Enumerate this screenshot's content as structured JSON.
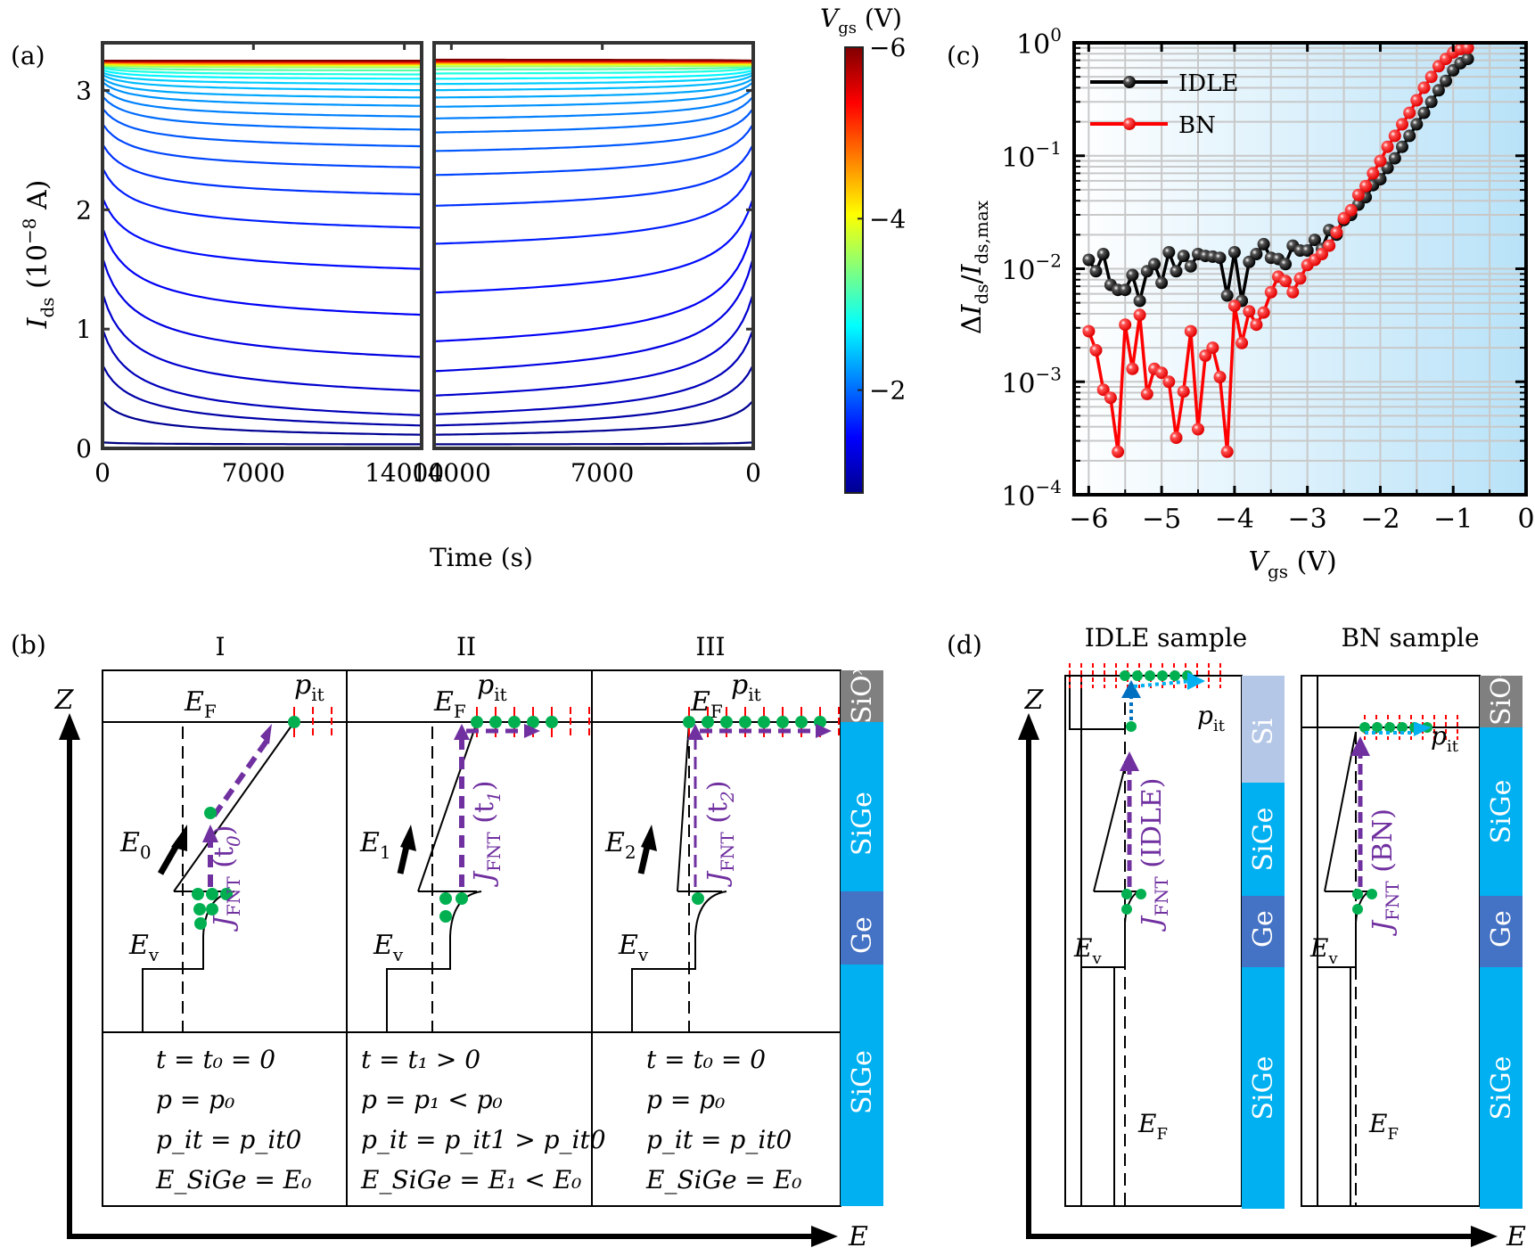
{
  "figure": {
    "panel_labels": {
      "a": "(a)",
      "b": "(b)",
      "c": "(c)",
      "d": "(d)"
    }
  },
  "chart_data": [
    {
      "id": "a",
      "type": "line",
      "title": "",
      "xlabel": "Time (s)",
      "ylabel": "I_ds (10^-8 A)",
      "ylabel_parts": {
        "var": "I",
        "sub": "ds",
        "unit_pre": " (10",
        "exp": "−8",
        "unit_post": " A)"
      },
      "ylim": [
        0,
        3.4
      ],
      "yticks": [
        0,
        1,
        2,
        3
      ],
      "ytick_labels": [
        "0",
        "1",
        "2",
        "3"
      ],
      "subplots": [
        {
          "name": "stress",
          "xlim": [
            0,
            14800
          ],
          "xticks": [
            0,
            7000,
            14000
          ],
          "xtick_labels": [
            "0",
            "7000",
            "14000"
          ],
          "direction": "forward"
        },
        {
          "name": "recovery",
          "xlim": [
            14800,
            0
          ],
          "xticks": [
            14000,
            7000,
            0
          ],
          "xtick_labels": [
            "14000",
            "7000",
            "0"
          ],
          "direction": "reversed"
        }
      ],
      "colorbar": {
        "label_var": "V",
        "label_sub": "gs",
        "label_unit": " (V)",
        "range": [
          -6,
          -0.8
        ],
        "ticks": [
          -6,
          -4,
          -2
        ],
        "tick_labels": [
          "−6",
          "−4",
          "−2"
        ],
        "colormap": "jet"
      },
      "series_description": "Family of Ids–time curves, one per Vgs from −0.8 V (blue, bottom) to −6 V (red, top ~3.25)",
      "curves": [
        {
          "vgs": -0.8,
          "start": 0.05,
          "end_stress": 0.03,
          "end_recovery": 0.03
        },
        {
          "vgs": -0.9,
          "start": 0.4,
          "end_stress": 0.04,
          "end_recovery": 0.04
        },
        {
          "vgs": -1.0,
          "start": 0.7,
          "end_stress": 0.06,
          "end_recovery": 0.06
        },
        {
          "vgs": -1.1,
          "start": 1.0,
          "end_stress": 0.09,
          "end_recovery": 0.1
        },
        {
          "vgs": -1.2,
          "start": 1.3,
          "end_stress": 0.27,
          "end_recovery": 0.22
        },
        {
          "vgs": -1.3,
          "start": 1.6,
          "end_stress": 0.55,
          "end_recovery": 0.4
        },
        {
          "vgs": -1.4,
          "start": 1.85,
          "end_stress": 0.93,
          "end_recovery": 0.65
        },
        {
          "vgs": -1.5,
          "start": 2.1,
          "end_stress": 1.35,
          "end_recovery": 1.1
        },
        {
          "vgs": -1.6,
          "start": 2.35,
          "end_stress": 1.72,
          "end_recovery": 1.55
        },
        {
          "vgs": -1.7,
          "start": 2.55,
          "end_stress": 2.02,
          "end_recovery": 1.9
        },
        {
          "vgs": -1.8,
          "start": 2.72,
          "end_stress": 2.26,
          "end_recovery": 2.18
        },
        {
          "vgs": -1.9,
          "start": 2.85,
          "end_stress": 2.45,
          "end_recovery": 2.4
        },
        {
          "vgs": -2.0,
          "start": 2.95,
          "end_stress": 2.6,
          "end_recovery": 2.57
        },
        {
          "vgs": -2.1,
          "start": 3.02,
          "end_stress": 2.72,
          "end_recovery": 2.7
        },
        {
          "vgs": -2.2,
          "start": 3.07,
          "end_stress": 2.82,
          "end_recovery": 2.81
        },
        {
          "vgs": -2.3,
          "start": 3.1,
          "end_stress": 2.9,
          "end_recovery": 2.9
        },
        {
          "vgs": -2.4,
          "start": 3.13,
          "end_stress": 2.97,
          "end_recovery": 2.97
        },
        {
          "vgs": -2.5,
          "start": 3.15,
          "end_stress": 3.03,
          "end_recovery": 3.03
        },
        {
          "vgs": -2.7,
          "start": 3.17,
          "end_stress": 3.08,
          "end_recovery": 3.08
        },
        {
          "vgs": -2.9,
          "start": 3.19,
          "end_stress": 3.12,
          "end_recovery": 3.13
        },
        {
          "vgs": -3.2,
          "start": 3.2,
          "end_stress": 3.16,
          "end_recovery": 3.17
        },
        {
          "vgs": -3.6,
          "start": 3.21,
          "end_stress": 3.19,
          "end_recovery": 3.2
        },
        {
          "vgs": -4.0,
          "start": 3.22,
          "end_stress": 3.21,
          "end_recovery": 3.22
        },
        {
          "vgs": -4.5,
          "start": 3.23,
          "end_stress": 3.22,
          "end_recovery": 3.23
        },
        {
          "vgs": -5.0,
          "start": 3.24,
          "end_stress": 3.23,
          "end_recovery": 3.24
        },
        {
          "vgs": -5.5,
          "start": 3.245,
          "end_stress": 3.24,
          "end_recovery": 3.245
        },
        {
          "vgs": -6.0,
          "start": 3.25,
          "end_stress": 3.25,
          "end_recovery": 3.26
        }
      ]
    },
    {
      "id": "c",
      "type": "line",
      "scale_y": "log",
      "xlabel_var": "V",
      "xlabel_sub": "gs",
      "xlabel_unit": " (V)",
      "ylabel": "ΔI_ds/I_ds,max",
      "xlim": [
        -6.2,
        0
      ],
      "ylim": [
        0.0001,
        1
      ],
      "xticks": [
        -6,
        -5,
        -4,
        -3,
        -2,
        -1,
        0
      ],
      "xtick_labels": [
        "−6",
        "−5",
        "−4",
        "−3",
        "−2",
        "−1",
        "0"
      ],
      "yticks": [
        0.0001,
        0.001,
        0.01,
        0.1,
        1
      ],
      "ytick_labels": [
        {
          "base": "10",
          "exp": "−4"
        },
        {
          "base": "10",
          "exp": "−3"
        },
        {
          "base": "10",
          "exp": "−2"
        },
        {
          "base": "10",
          "exp": "−1"
        },
        {
          "base": "10",
          "exp": "0"
        }
      ],
      "grid": true,
      "background": "gradient white→light blue left-to-right",
      "legend": {
        "position": "top-left",
        "entries": [
          "IDLE",
          "BN"
        ]
      },
      "series": [
        {
          "name": "IDLE",
          "color": "#000000",
          "x": [
            -6.0,
            -5.9,
            -5.8,
            -5.7,
            -5.6,
            -5.5,
            -5.4,
            -5.3,
            -5.2,
            -5.1,
            -5.0,
            -4.9,
            -4.8,
            -4.7,
            -4.6,
            -4.5,
            -4.4,
            -4.3,
            -4.2,
            -4.1,
            -4.0,
            -3.9,
            -3.8,
            -3.7,
            -3.6,
            -3.5,
            -3.4,
            -3.3,
            -3.2,
            -3.1,
            -3.0,
            -2.9,
            -2.8,
            -2.7,
            -2.6,
            -2.5,
            -2.4,
            -2.3,
            -2.2,
            -2.1,
            -2.0,
            -1.9,
            -1.8,
            -1.7,
            -1.6,
            -1.5,
            -1.4,
            -1.3,
            -1.2,
            -1.1,
            -1.0,
            -0.9,
            -0.8
          ],
          "values": [
            0.012,
            0.0095,
            0.0135,
            0.0072,
            0.0065,
            0.0065,
            0.0088,
            0.0052,
            0.0095,
            0.011,
            0.0075,
            0.014,
            0.0095,
            0.013,
            0.0105,
            0.0135,
            0.013,
            0.0128,
            0.0125,
            0.0058,
            0.014,
            0.0052,
            0.0115,
            0.0135,
            0.0165,
            0.0125,
            0.0122,
            0.011,
            0.016,
            0.0145,
            0.0145,
            0.018,
            0.015,
            0.022,
            0.02,
            0.027,
            0.03,
            0.037,
            0.043,
            0.055,
            0.062,
            0.078,
            0.095,
            0.12,
            0.15,
            0.19,
            0.24,
            0.3,
            0.38,
            0.46,
            0.57,
            0.66,
            0.72
          ]
        },
        {
          "name": "BN",
          "color": "#ff0000",
          "x": [
            -6.0,
            -5.9,
            -5.8,
            -5.7,
            -5.6,
            -5.5,
            -5.4,
            -5.3,
            -5.2,
            -5.1,
            -5.0,
            -4.9,
            -4.8,
            -4.7,
            -4.6,
            -4.5,
            -4.4,
            -4.3,
            -4.2,
            -4.1,
            -4.0,
            -3.9,
            -3.8,
            -3.7,
            -3.6,
            -3.5,
            -3.4,
            -3.3,
            -3.2,
            -3.1,
            -3.0,
            -2.9,
            -2.8,
            -2.7,
            -2.6,
            -2.5,
            -2.4,
            -2.3,
            -2.2,
            -2.1,
            -2.0,
            -1.9,
            -1.8,
            -1.7,
            -1.6,
            -1.5,
            -1.4,
            -1.3,
            -1.2,
            -1.1,
            -1.0,
            -0.9,
            -0.8
          ],
          "values": [
            0.0028,
            0.0019,
            0.00085,
            0.00072,
            0.00024,
            0.0032,
            0.0013,
            0.0039,
            0.00078,
            0.0013,
            0.0012,
            0.001,
            0.00032,
            0.00082,
            0.0028,
            0.00038,
            0.0017,
            0.002,
            0.0011,
            0.00024,
            0.0047,
            0.0022,
            0.0042,
            0.0032,
            0.0041,
            0.0062,
            0.0085,
            0.0078,
            0.0062,
            0.0082,
            0.0108,
            0.012,
            0.0135,
            0.016,
            0.021,
            0.028,
            0.033,
            0.045,
            0.054,
            0.07,
            0.09,
            0.12,
            0.15,
            0.19,
            0.24,
            0.31,
            0.4,
            0.5,
            0.62,
            0.72,
            0.82,
            0.88,
            0.9
          ]
        }
      ]
    }
  ],
  "panel_b": {
    "columns": [
      "I",
      "II",
      "III"
    ],
    "axis_z": "Z",
    "axis_e": "E",
    "layers": [
      {
        "name": "SiO",
        "sub": "x",
        "color": "#808080"
      },
      {
        "name": "SiGe",
        "color": "#00b0f0"
      },
      {
        "name": "Ge",
        "color": "#4472c4"
      },
      {
        "name": "SiGe",
        "color": "#00b0f0"
      }
    ],
    "labels": {
      "ef_var": "E",
      "ef_sub": "F",
      "ev_var": "E",
      "ev_sub": "v",
      "pit_var": "p",
      "pit_sub": "it",
      "e_fields": [
        {
          "var": "E",
          "sub": "0"
        },
        {
          "var": "E",
          "sub": "1"
        },
        {
          "var": "E",
          "sub": "2"
        }
      ],
      "jfnt": [
        {
          "main": "J",
          "sub": "FNT",
          "arg": "(t",
          "arg_sub": "0",
          "close": ")"
        },
        {
          "main": "J",
          "sub": "FNT",
          "arg": "(t",
          "arg_sub": "1",
          "close": ")"
        },
        {
          "main": "J",
          "sub": "FNT",
          "arg": "(t",
          "arg_sub": "2",
          "close": ")"
        }
      ]
    },
    "conditions": [
      [
        "t = t₀ = 0",
        "p = p₀",
        "p_it = p_it0",
        "E_SiGe = E₀"
      ],
      [
        "t = t₁ > 0",
        "p = p₁ < p₀",
        "p_it = p_it1 > p_it0",
        "E_SiGe = E₁ < E₀"
      ],
      [
        "t = t₀ = 0",
        "p = p₀",
        "p_it = p_it0",
        "E_SiGe = E₀"
      ]
    ],
    "colors": {
      "arrow_purple": "#7030a0",
      "dot_green": "#00b050",
      "trap_red": "#ff0000"
    }
  },
  "panel_d": {
    "titles": [
      "IDLE sample",
      "BN sample"
    ],
    "axis_z": "Z",
    "axis_e": "E",
    "idle_layers": [
      {
        "name": "Si",
        "color": "#b4c7e7"
      },
      {
        "name": "SiGe",
        "color": "#00b0f0"
      },
      {
        "name": "Ge",
        "color": "#4472c4"
      },
      {
        "name": "SiGe",
        "color": "#00b0f0"
      }
    ],
    "bn_layers": [
      {
        "name": "SiO",
        "sub": "x",
        "color": "#808080"
      },
      {
        "name": "SiGe",
        "color": "#00b0f0"
      },
      {
        "name": "Ge",
        "color": "#4472c4"
      },
      {
        "name": "SiGe",
        "color": "#00b0f0"
      }
    ],
    "jfnt_idle": {
      "main": "J",
      "sub": "FNT",
      "arg": "(IDLE)"
    },
    "jfnt_bn": {
      "main": "J",
      "sub": "FNT",
      "arg": "(BN)"
    },
    "colors": {
      "arrow_blue": "#0070c0",
      "arrow_cyan": "#00b0f0"
    }
  }
}
